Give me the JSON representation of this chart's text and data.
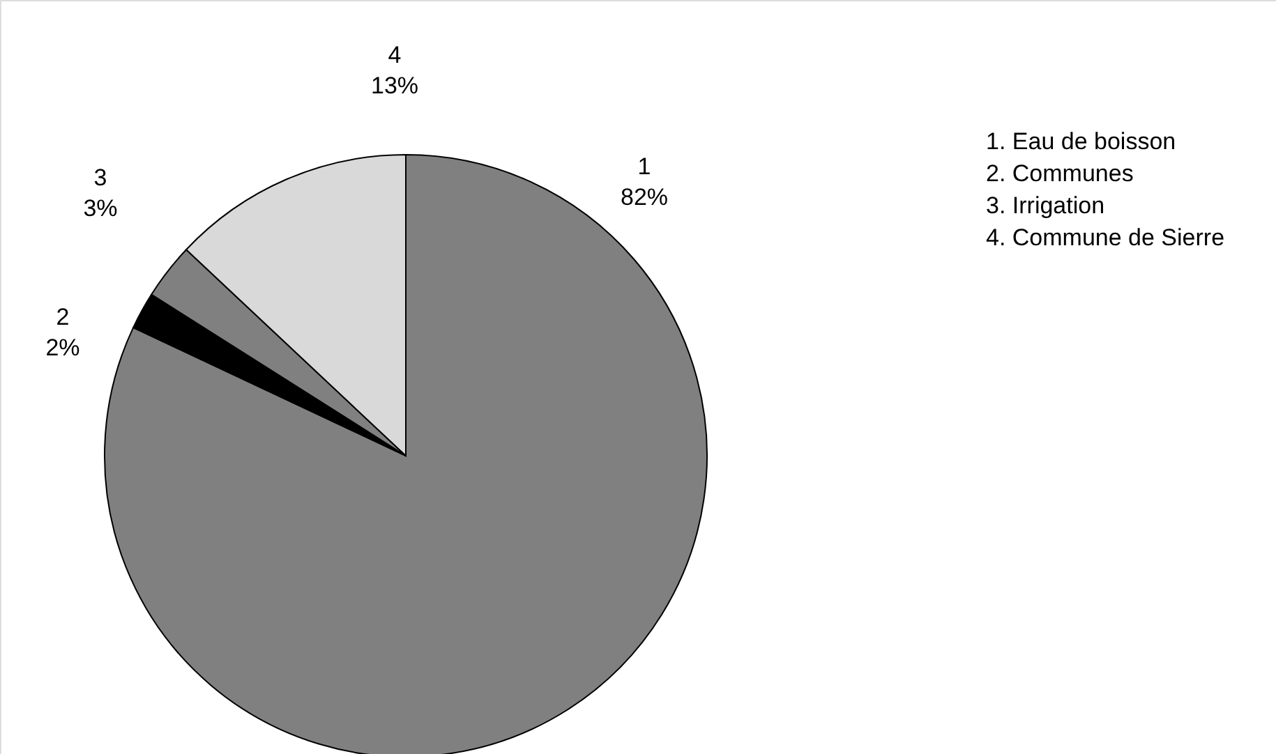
{
  "chart_data": {
    "type": "pie",
    "categories": [
      "1",
      "2",
      "3",
      "4"
    ],
    "values": [
      82,
      2,
      3,
      13
    ],
    "colors": [
      "#808080",
      "#000000",
      "#808080",
      "#d9d9d9"
    ],
    "value_labels": [
      "82%",
      "2%",
      "3%",
      "13%"
    ],
    "annotations": [
      "1. Eau de boisson",
      "2. Communes",
      "3. Irrigation",
      "4. Commune de Sierre"
    ]
  }
}
